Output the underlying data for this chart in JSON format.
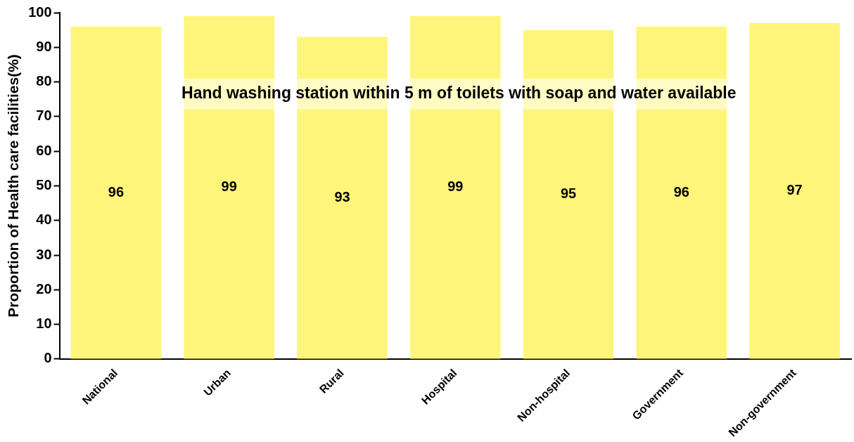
{
  "chart_data": {
    "type": "bar",
    "title": "Hand washing station within 5 m of toilets with soap and water available",
    "ylabel": "Proportion of Health care facilities(%)",
    "categories": [
      "National",
      "Urban",
      "Rural",
      "Hospital",
      "Non-hospital",
      "Government",
      "Non-government"
    ],
    "values": [
      96,
      99,
      93,
      99,
      95,
      96,
      97
    ],
    "color": "#fff57a",
    "ylim": [
      0,
      100
    ],
    "yticks": [
      0,
      10,
      20,
      30,
      40,
      50,
      60,
      70,
      80,
      90,
      100
    ],
    "grid": false,
    "legend": false,
    "data_labels": true
  }
}
